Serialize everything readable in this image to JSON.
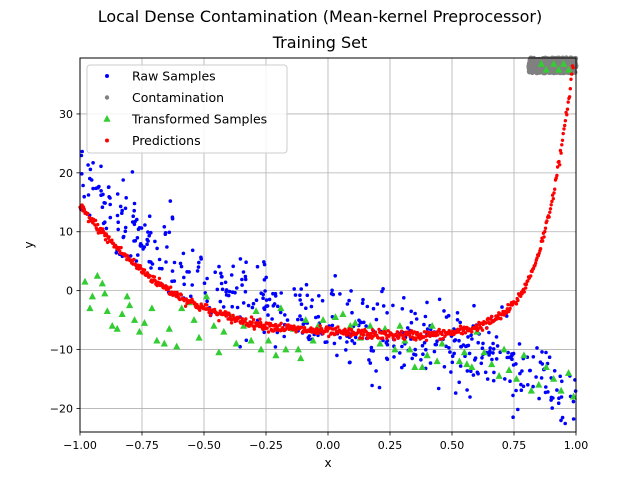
{
  "chart_data": {
    "type": "scatter",
    "suptitle": "Local Dense Contamination (Mean-kernel Preprocessor)",
    "title": "Training Set",
    "xlabel": "x",
    "ylabel": "y",
    "xlim": [
      -1.0,
      1.0
    ],
    "ylim": [
      -24,
      39.5
    ],
    "xticks": [
      -1.0,
      -0.75,
      -0.5,
      -0.25,
      0.0,
      0.25,
      0.5,
      0.75,
      1.0
    ],
    "xtick_labels": [
      "−1.00",
      "−0.75",
      "−0.50",
      "−0.25",
      "0.00",
      "0.25",
      "0.50",
      "0.75",
      "1.00"
    ],
    "yticks": [
      -20,
      -10,
      0,
      10,
      20,
      30
    ],
    "ytick_labels": [
      "−20",
      "−10",
      "0",
      "10",
      "20",
      "30"
    ],
    "grid": true,
    "legend_position": "top-left",
    "series": [
      {
        "name": "Raw Samples",
        "marker": "circle",
        "color": "#0000ff",
        "description": "noisy scatter around a cubic trend, about 500 points, noise sd about 3.3"
      },
      {
        "name": "Contamination",
        "marker": "circle",
        "color": "#808080",
        "description": "dense cluster near x 0.81 to 1.0, y about 37 to 39.5"
      },
      {
        "name": "Transformed Samples",
        "marker": "triangle",
        "color": "#33cc33",
        "points": [
          [
            -0.98,
            1.5
          ],
          [
            -0.96,
            -3
          ],
          [
            -0.95,
            -1
          ],
          [
            -0.93,
            2.5
          ],
          [
            -0.91,
            1.2
          ],
          [
            -0.9,
            -0.5
          ],
          [
            -0.89,
            -3.5
          ],
          [
            -0.87,
            -6
          ],
          [
            -0.85,
            -6.5
          ],
          [
            -0.83,
            -4
          ],
          [
            -0.81,
            -1
          ],
          [
            -0.8,
            -2.5
          ],
          [
            -0.78,
            -5
          ],
          [
            -0.76,
            -7
          ],
          [
            -0.74,
            -5.5
          ],
          [
            -0.71,
            -3
          ],
          [
            -0.69,
            -8.5
          ],
          [
            -0.66,
            -9
          ],
          [
            -0.64,
            -6.5
          ],
          [
            -0.61,
            -9.5
          ],
          [
            -0.59,
            -3
          ],
          [
            -0.56,
            -2
          ],
          [
            -0.54,
            -5
          ],
          [
            -0.52,
            -8
          ],
          [
            -0.49,
            -1
          ],
          [
            -0.46,
            -6
          ],
          [
            -0.44,
            -10.5
          ],
          [
            -0.42,
            -7
          ],
          [
            -0.39,
            -4.5
          ],
          [
            -0.37,
            -9
          ],
          [
            -0.34,
            -6
          ],
          [
            -0.31,
            -8.5
          ],
          [
            -0.29,
            -3.5
          ],
          [
            -0.27,
            -10
          ],
          [
            -0.24,
            -8.5
          ],
          [
            -0.21,
            -11
          ],
          [
            -0.19,
            -3
          ],
          [
            -0.17,
            -10
          ],
          [
            -0.14,
            -6.5
          ],
          [
            -0.12,
            -10
          ],
          [
            -0.11,
            -11.5
          ],
          [
            -0.09,
            -5
          ],
          [
            -0.06,
            -8.5
          ],
          [
            -0.04,
            -6
          ],
          [
            -0.02,
            -5
          ],
          [
            0.03,
            -4.5
          ],
          [
            0.06,
            -4
          ],
          [
            0.09,
            -6
          ],
          [
            0.11,
            -5.5
          ],
          [
            0.13,
            -8
          ],
          [
            0.17,
            -6
          ],
          [
            0.21,
            -9
          ],
          [
            0.23,
            -6.5
          ],
          [
            0.27,
            -10
          ],
          [
            0.29,
            -6
          ],
          [
            0.31,
            -8.5
          ],
          [
            0.33,
            -10
          ],
          [
            0.35,
            -13
          ],
          [
            0.38,
            -13
          ],
          [
            0.4,
            -11
          ],
          [
            0.42,
            -6
          ],
          [
            0.44,
            -12
          ],
          [
            0.46,
            -9
          ],
          [
            0.5,
            -7
          ],
          [
            0.53,
            -12
          ],
          [
            0.55,
            -10.5
          ],
          [
            0.56,
            -12.5
          ],
          [
            0.58,
            -13
          ],
          [
            0.6,
            -7
          ],
          [
            0.63,
            -10.5
          ],
          [
            0.66,
            -12.5
          ],
          [
            0.69,
            -14.5
          ],
          [
            0.71,
            -10
          ],
          [
            0.73,
            -13.5
          ],
          [
            0.76,
            -15
          ],
          [
            0.79,
            -11
          ],
          [
            0.82,
            -17
          ],
          [
            0.85,
            -16
          ],
          [
            0.88,
            -13
          ],
          [
            0.91,
            -15
          ],
          [
            0.94,
            -17
          ],
          [
            0.97,
            -14
          ],
          [
            0.99,
            -18
          ],
          [
            0.86,
            38.5
          ],
          [
            0.88,
            37.5
          ],
          [
            0.91,
            38.5
          ],
          [
            0.93,
            37.5
          ],
          [
            0.95,
            38.5
          ],
          [
            0.97,
            37.5
          ]
        ]
      },
      {
        "name": "Predictions",
        "marker": "circle",
        "color": "#ff0000",
        "description": "model predictions following the fitted curve, rising steeply near x = 1"
      }
    ]
  }
}
